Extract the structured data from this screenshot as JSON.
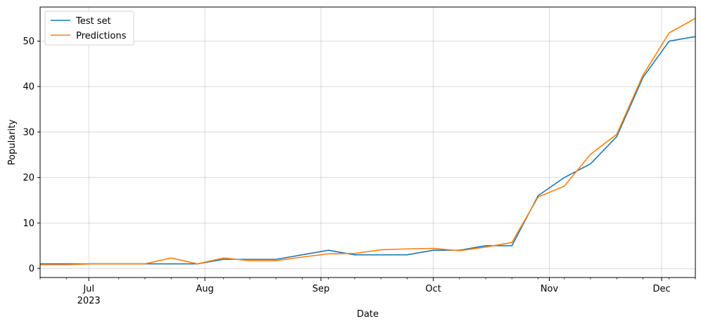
{
  "chart_data": {
    "type": "line",
    "xlabel": "Date",
    "ylabel": "Popularity",
    "x": [
      "2023-06-18",
      "2023-06-25",
      "2023-07-02",
      "2023-07-09",
      "2023-07-16",
      "2023-07-23",
      "2023-07-30",
      "2023-08-06",
      "2023-08-13",
      "2023-08-20",
      "2023-08-27",
      "2023-09-03",
      "2023-09-10",
      "2023-09-17",
      "2023-09-24",
      "2023-10-01",
      "2023-10-08",
      "2023-10-15",
      "2023-10-22",
      "2023-10-29",
      "2023-11-05",
      "2023-11-12",
      "2023-11-19",
      "2023-11-26",
      "2023-12-03",
      "2023-12-10"
    ],
    "xlim": [
      "2023-06-18",
      "2023-12-10"
    ],
    "ylim": [
      -2,
      57.5
    ],
    "y_ticks": [
      0,
      10,
      20,
      30,
      40,
      50
    ],
    "x_major_ticks": [
      {
        "date": "2023-07-01",
        "label": "Jul",
        "sublabel": "2023"
      },
      {
        "date": "2023-08-01",
        "label": "Aug",
        "sublabel": ""
      },
      {
        "date": "2023-09-01",
        "label": "Sep",
        "sublabel": ""
      },
      {
        "date": "2023-10-01",
        "label": "Oct",
        "sublabel": ""
      },
      {
        "date": "2023-11-01",
        "label": "Nov",
        "sublabel": ""
      },
      {
        "date": "2023-12-01",
        "label": "Dec",
        "sublabel": ""
      }
    ],
    "x_minor_ticks": [
      "2023-06-18",
      "2023-06-25",
      "2023-07-09",
      "2023-07-16",
      "2023-07-23",
      "2023-07-30",
      "2023-08-06",
      "2023-08-13",
      "2023-08-20",
      "2023-08-27",
      "2023-09-03",
      "2023-09-10",
      "2023-09-17",
      "2023-09-24",
      "2023-10-08",
      "2023-10-15",
      "2023-10-22",
      "2023-10-29",
      "2023-11-05",
      "2023-11-12",
      "2023-11-19",
      "2023-11-26",
      "2023-12-03",
      "2023-12-10"
    ],
    "grid": true,
    "legend_position": "top-left",
    "series": [
      {
        "name": "Test set",
        "color": "#1f77b4",
        "values": [
          1,
          1,
          1,
          1,
          1,
          1,
          1,
          2,
          2,
          2,
          3,
          4,
          3,
          3,
          3,
          4,
          4,
          5,
          5,
          16,
          20,
          23,
          29,
          42,
          50,
          51
        ]
      },
      {
        "name": "Predictions",
        "color": "#ff7f0e",
        "values": [
          0.8,
          0.8,
          1,
          1,
          1,
          2.3,
          1,
          2.3,
          1.7,
          1.7,
          2.5,
          3.2,
          3.3,
          4.1,
          4.3,
          4.4,
          3.9,
          4.7,
          5.7,
          15.7,
          18.1,
          25.1,
          29.5,
          42.5,
          51.8,
          55
        ]
      }
    ]
  }
}
